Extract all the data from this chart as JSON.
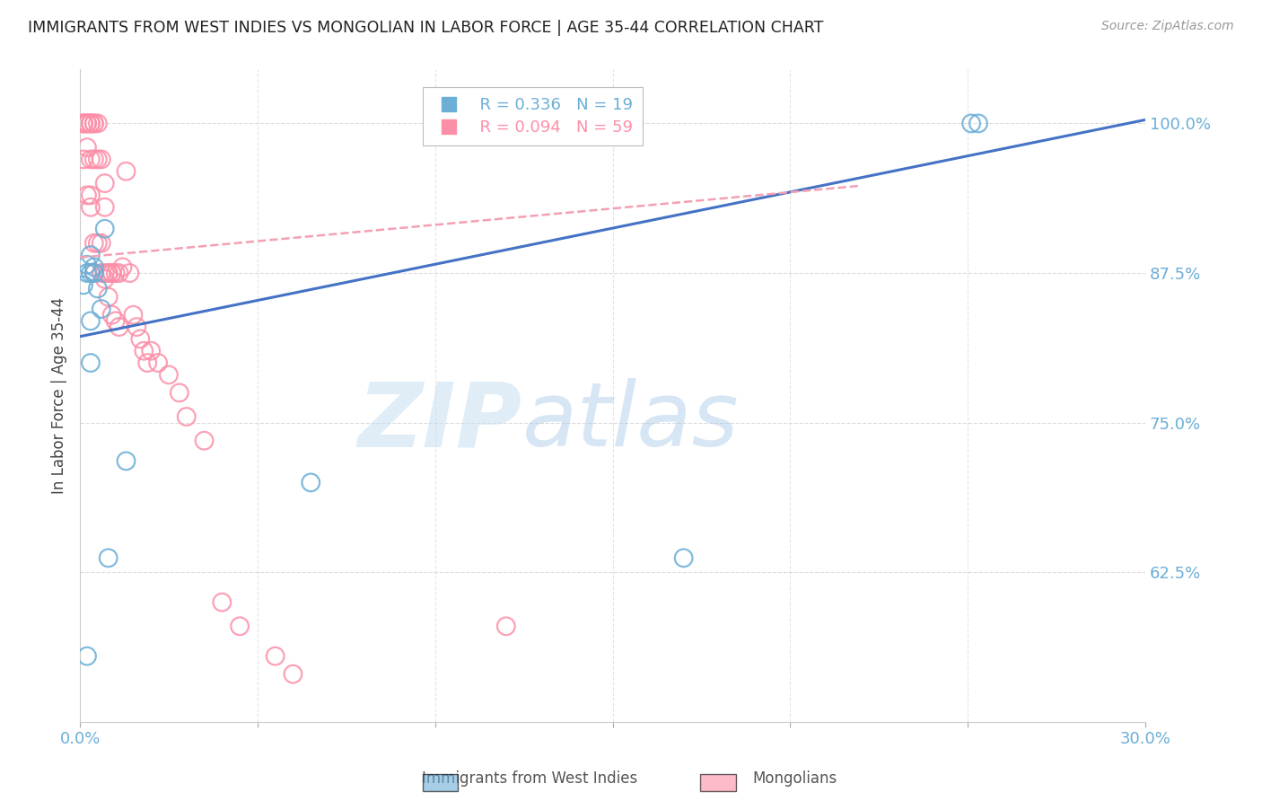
{
  "title": "IMMIGRANTS FROM WEST INDIES VS MONGOLIAN IN LABOR FORCE | AGE 35-44 CORRELATION CHART",
  "source": "Source: ZipAtlas.com",
  "xlabel": "",
  "ylabel": "In Labor Force | Age 35-44",
  "xlim": [
    0.0,
    0.3
  ],
  "ylim": [
    0.5,
    1.045
  ],
  "yticks": [
    0.625,
    0.75,
    0.875,
    1.0
  ],
  "ytick_labels": [
    "62.5%",
    "75.0%",
    "87.5%",
    "100.0%"
  ],
  "xticks": [
    0.0,
    0.05,
    0.1,
    0.15,
    0.2,
    0.25,
    0.3
  ],
  "xtick_labels": [
    "0.0%",
    "",
    "",
    "",
    "",
    "",
    "30.0%"
  ],
  "legend_R_blue": "R = 0.336",
  "legend_N_blue": "N = 19",
  "legend_R_pink": "R = 0.094",
  "legend_N_pink": "N = 59",
  "blue_color": "#6baed6",
  "pink_color": "#fc8fa8",
  "line_blue_color": "#4472c4",
  "line_pink_color": "#f4a0b4",
  "axis_color": "#6baed6",
  "blue_points_x": [
    0.001,
    0.002,
    0.002,
    0.003,
    0.003,
    0.004,
    0.004,
    0.005,
    0.003,
    0.006,
    0.007,
    0.003,
    0.002,
    0.008,
    0.013,
    0.251,
    0.253,
    0.065,
    0.17
  ],
  "blue_points_y": [
    0.865,
    0.882,
    0.875,
    0.89,
    0.875,
    0.88,
    0.875,
    0.862,
    0.835,
    0.845,
    0.912,
    0.8,
    0.555,
    0.637,
    0.718,
    1.0,
    1.0,
    0.7,
    0.637
  ],
  "pink_points_x": [
    0.001,
    0.001,
    0.001,
    0.001,
    0.002,
    0.002,
    0.002,
    0.002,
    0.002,
    0.003,
    0.003,
    0.003,
    0.003,
    0.003,
    0.003,
    0.004,
    0.004,
    0.004,
    0.004,
    0.004,
    0.005,
    0.005,
    0.005,
    0.006,
    0.006,
    0.006,
    0.007,
    0.007,
    0.007,
    0.007,
    0.008,
    0.008,
    0.008,
    0.009,
    0.009,
    0.009,
    0.01,
    0.01,
    0.011,
    0.011,
    0.012,
    0.013,
    0.014,
    0.015,
    0.016,
    0.017,
    0.018,
    0.019,
    0.02,
    0.022,
    0.025,
    0.028,
    0.03,
    0.035,
    0.04,
    0.045,
    0.055,
    0.06,
    0.12
  ],
  "pink_points_y": [
    1.0,
    1.0,
    1.0,
    0.97,
    1.0,
    1.0,
    1.0,
    0.98,
    0.94,
    1.0,
    1.0,
    1.0,
    0.97,
    0.94,
    0.93,
    1.0,
    1.0,
    0.97,
    0.9,
    0.875,
    1.0,
    0.97,
    0.9,
    0.97,
    0.9,
    0.875,
    0.95,
    0.93,
    0.875,
    0.87,
    0.875,
    0.875,
    0.855,
    0.875,
    0.875,
    0.84,
    0.875,
    0.835,
    0.875,
    0.83,
    0.88,
    0.96,
    0.875,
    0.84,
    0.83,
    0.82,
    0.81,
    0.8,
    0.81,
    0.8,
    0.79,
    0.775,
    0.755,
    0.735,
    0.6,
    0.58,
    0.555,
    0.54,
    0.58
  ],
  "blue_line_x0": 0.0,
  "blue_line_y0": 0.822,
  "blue_line_x1": 0.3,
  "blue_line_y1": 1.003,
  "pink_line_x0": 0.0,
  "pink_line_y0": 0.888,
  "pink_line_x1": 0.22,
  "pink_line_y1": 0.948,
  "watermark_zip": "ZIP",
  "watermark_atlas": "atlas",
  "background_color": "#ffffff",
  "grid_color": "#cccccc"
}
